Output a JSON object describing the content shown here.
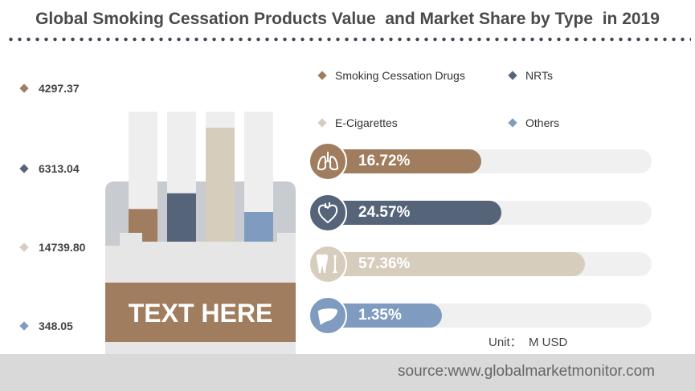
{
  "title": "Global Smoking Cessation Products Value  and Market Share by Type  in 2019",
  "values_list": [
    {
      "value": "4297.37",
      "color": "#a07d5e"
    },
    {
      "value": "6313.04",
      "color": "#566479"
    },
    {
      "value": "14739.80",
      "color": "#d6cdbd"
    },
    {
      "value": "348.05",
      "color": "#7f9cc0"
    }
  ],
  "legend": [
    {
      "label": "Smoking Cessation Drugs",
      "color": "#a07d5e"
    },
    {
      "label": "NRTs",
      "color": "#566479"
    },
    {
      "label": "E-Cigarettes",
      "color": "#d6cdbd"
    },
    {
      "label": "Others",
      "color": "#7f9cc0"
    }
  ],
  "pack_label": "TEXT HERE",
  "unit": "Unit：  M USD",
  "source": "source:www.globalmarketmonitor.com",
  "chart_data": {
    "type": "bar",
    "categories": [
      "Smoking Cessation Drugs",
      "NRTs",
      "E-Cigarettes",
      "Others"
    ],
    "values": [
      4297.37,
      6313.04,
      14739.8,
      348.05
    ],
    "shares": [
      16.72,
      24.57,
      57.36,
      1.35
    ],
    "share_labels": [
      "16.72%",
      "24.57%",
      "57.36%",
      "1.35%"
    ],
    "icons": [
      "lungs-icon",
      "heart-icon",
      "tooth-bone-icon",
      "liver-icon"
    ],
    "colors": [
      "#a07d5e",
      "#566479",
      "#d6cdbd",
      "#7f9cc0"
    ],
    "title": "Global Smoking Cessation Products Value  and Market Share by Type  in 2019"
  }
}
